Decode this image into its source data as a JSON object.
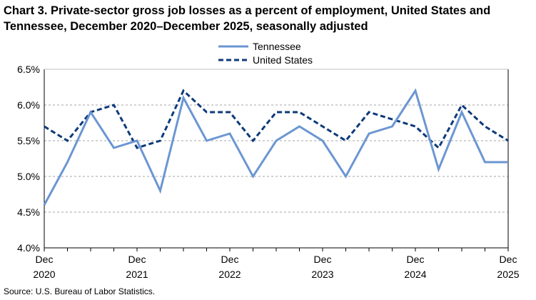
{
  "chart_data": {
    "type": "line",
    "title": "Chart 3. Private-sector gross job losses as a percent of employment, United States and Tennessee, December 2020–December 2025, seasonally adjusted",
    "source": "Source: U.S. Bureau of Labor Statistics.",
    "ylim": [
      4.0,
      6.5
    ],
    "yticks": [
      "4.0%",
      "4.5%",
      "5.0%",
      "5.5%",
      "6.0%",
      "6.5%"
    ],
    "ytick_values": [
      4.0,
      4.5,
      5.0,
      5.5,
      6.0,
      6.5
    ],
    "xtick_labels": [
      {
        "line1": "Dec",
        "line2": "2020",
        "index": 0
      },
      {
        "line1": "Dec",
        "line2": "2021",
        "index": 4
      },
      {
        "line1": "Dec",
        "line2": "2022",
        "index": 8
      },
      {
        "line1": "Dec",
        "line2": "2023",
        "index": 12
      },
      {
        "line1": "Dec",
        "line2": "2024",
        "index": 16
      },
      {
        "line1": "Dec",
        "line2": "2025",
        "index": 20
      }
    ],
    "x": [
      "Dec 2020",
      "Mar 2021",
      "Jun 2021",
      "Sep 2021",
      "Dec 2021",
      "Mar 2022",
      "Jun 2022",
      "Sep 2022",
      "Dec 2022",
      "Mar 2023",
      "Jun 2023",
      "Sep 2023",
      "Dec 2023",
      "Mar 2024",
      "Jun 2024",
      "Sep 2024",
      "Dec 2024",
      "Mar 2025",
      "Jun 2025",
      "Sep 2025",
      "Dec 2025"
    ],
    "grid": true,
    "legend_position": "top-center",
    "series": [
      {
        "name": "Tennessee",
        "color": "#6b96d2",
        "style": "solid",
        "values": [
          4.6,
          5.2,
          5.9,
          5.4,
          5.5,
          4.8,
          6.1,
          5.5,
          5.6,
          5.0,
          5.5,
          5.7,
          5.5,
          5.0,
          5.6,
          5.7,
          6.2,
          5.1,
          5.9,
          5.2,
          5.2
        ]
      },
      {
        "name": "United States",
        "color": "#0d3a7a",
        "style": "dashed",
        "values": [
          5.7,
          5.5,
          5.9,
          6.0,
          5.4,
          5.5,
          6.2,
          5.9,
          5.9,
          5.5,
          5.9,
          5.9,
          5.7,
          5.5,
          5.9,
          5.8,
          5.7,
          5.4,
          6.0,
          5.7,
          5.5
        ]
      }
    ]
  }
}
